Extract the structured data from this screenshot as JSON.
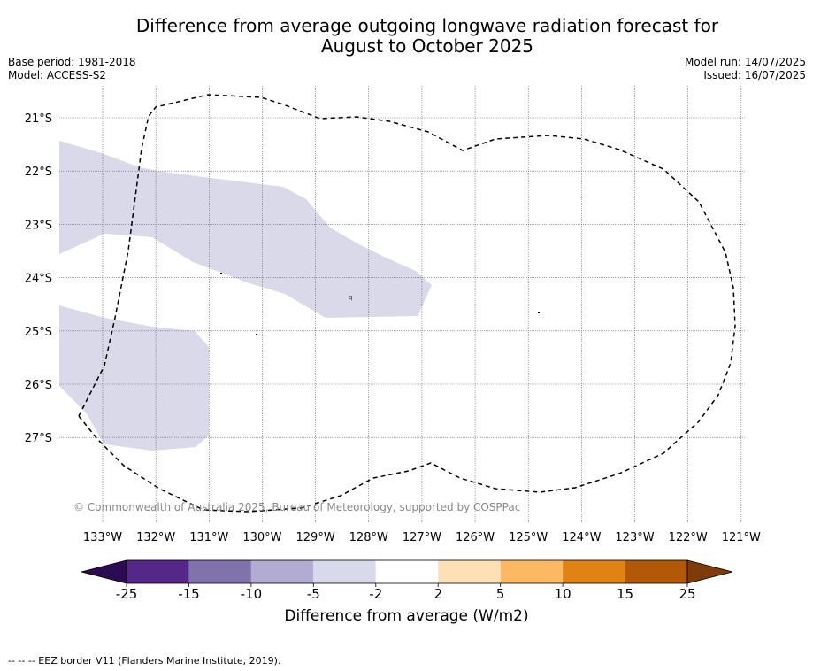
{
  "title": {
    "line1": "Difference from average outgoing longwave radiation forecast for",
    "line2": "August to October 2025"
  },
  "meta": {
    "base_period": "Base period: 1981-2018",
    "model": "Model: ACCESS-S2",
    "model_run": "Model run: 14/07/2025",
    "issued": "Issued: 16/07/2025"
  },
  "map": {
    "lat_labels": [
      "21°S",
      "22°S",
      "23°S",
      "24°S",
      "25°S",
      "26°S",
      "27°S"
    ],
    "lon_labels": [
      "133°W",
      "132°W",
      "131°W",
      "130°W",
      "129°W",
      "128°W",
      "127°W",
      "126°W",
      "125°W",
      "124°W",
      "123°W",
      "122°W",
      "121°W"
    ],
    "copyright": "© Commonwealth of Australia 2025, Bureau of Meteorology, supported by COSPPac",
    "anomaly_class_shown": "-5 to -2",
    "anomaly_fill_color": "#d9d9e9",
    "eez_line_color": "#000000",
    "small_label": "q"
  },
  "colorbar": {
    "ticks": [
      "-25",
      "-15",
      "-10",
      "-5",
      "-2",
      "2",
      "5",
      "10",
      "15",
      "25"
    ],
    "colors": [
      "#2d0b52",
      "#542788",
      "#8073ac",
      "#b2abd2",
      "#d8daeb",
      "#ffffff",
      "#fee0b6",
      "#fdb863",
      "#e08214",
      "#b35806",
      "#7f3b08"
    ],
    "title": "Difference from average (W/m2)"
  },
  "footer": "--  --  -- EEZ border V11 (Flanders Marine Institute, 2019)."
}
